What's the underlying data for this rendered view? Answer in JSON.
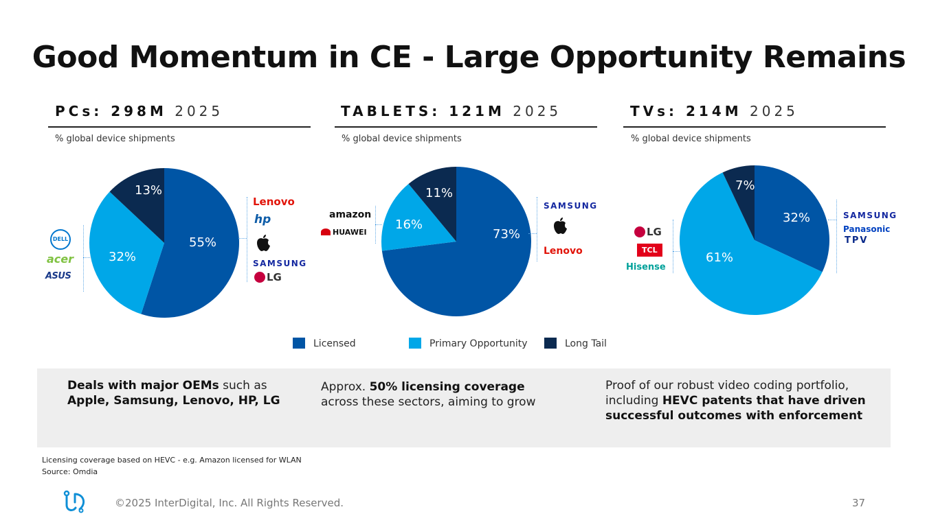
{
  "slide": {
    "title": "Good Momentum in CE - Large Opportunity Remains"
  },
  "colors": {
    "licensed": "#0055a5",
    "primary_opportunity": "#00a7e8",
    "long_tail": "#0b2a50"
  },
  "columns": [
    {
      "heading_bold": "PCs: 298M",
      "heading_year": "2025",
      "subtitle": "% global device shipments",
      "labels": {
        "licensed": "55%",
        "primary": "32%",
        "longtail": "13%"
      },
      "right_logos": [
        "Lenovo",
        "hp",
        "apple-icon",
        "SAMSUNG",
        "LG"
      ],
      "left_logos": [
        "DELL",
        "acer",
        "ASUS"
      ]
    },
    {
      "heading_bold": "TABLETS: 121M",
      "heading_year": "2025",
      "subtitle": "% global device shipments",
      "labels": {
        "licensed": "73%",
        "primary": "16%",
        "longtail": "11%"
      },
      "right_logos": [
        "SAMSUNG",
        "apple-icon",
        "Lenovo"
      ],
      "left_logos": [
        "amazon",
        "HUAWEI"
      ]
    },
    {
      "heading_bold": "TVs: 214M",
      "heading_year": "2025",
      "subtitle": "% global device shipments",
      "labels": {
        "licensed": "32%",
        "primary": "61%",
        "longtail": "7%"
      },
      "right_logos": [
        "SAMSUNG",
        "Panasonic",
        "TPV"
      ],
      "left_logos": [
        "LG",
        "TCL",
        "Hisense"
      ]
    }
  ],
  "chart_data": [
    {
      "type": "pie",
      "title": "PCs: 298M 2025",
      "categories": [
        "Licensed",
        "Primary Opportunity",
        "Long Tail"
      ],
      "values": [
        55,
        32,
        13
      ]
    },
    {
      "type": "pie",
      "title": "TABLETS: 121M 2025",
      "categories": [
        "Licensed",
        "Primary Opportunity",
        "Long Tail"
      ],
      "values": [
        73,
        16,
        11
      ]
    },
    {
      "type": "pie",
      "title": "TVs: 214M 2025",
      "categories": [
        "Licensed",
        "Primary Opportunity",
        "Long Tail"
      ],
      "values": [
        32,
        61,
        7
      ]
    }
  ],
  "legend": {
    "licensed": "Licensed",
    "primary": "Primary Opportunity",
    "longtail": "Long Tail"
  },
  "band": {
    "left_bold": "Deals with major OEMs",
    "left_rest": " such as",
    "left_bold2": "Apple, Samsung, Lenovo, HP, LG",
    "mid_pre": "Approx. ",
    "mid_bold": "50% licensing coverage",
    "mid_rest": "across these sectors, aiming to grow",
    "right_pre": "Proof of our robust video coding portfolio, including ",
    "right_bold": "HEVC patents that have driven successful outcomes with enforcement"
  },
  "notes": {
    "line1": "Licensing coverage based on HEVC - e.g. Amazon licensed for WLAN",
    "line2": "Source: Omdia"
  },
  "footer": {
    "copyright": "©2025 InterDigital, Inc. All Rights Reserved.",
    "page": "37"
  }
}
